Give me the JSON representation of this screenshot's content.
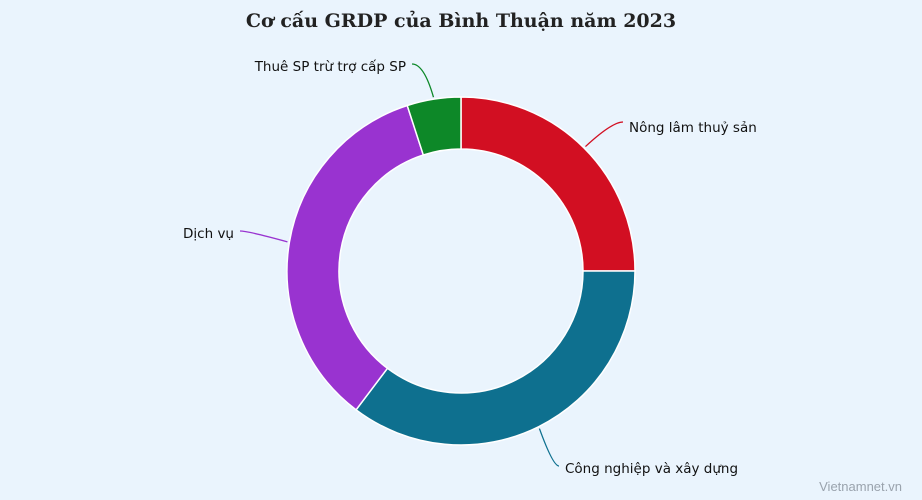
{
  "chart_data": {
    "type": "pie",
    "variant": "donut",
    "title": "Cơ cấu GRDP của Bình Thuận năm 2023",
    "unit": "%",
    "slices": [
      {
        "label": "Nông lâm thuỷ sản",
        "value": 25.0,
        "color": "#d20f22"
      },
      {
        "label": "Công nghiệp và xây dựng",
        "value": 35.3,
        "color": "#0e708f"
      },
      {
        "label": "Dịch vụ",
        "value": 34.7,
        "color": "#9933d0"
      },
      {
        "label": "Thuê SP trừ trợ cấp SP",
        "value": 5.0,
        "color": "#0d8828"
      }
    ],
    "legend": "none"
  },
  "credit": "Vietnamnet.vn"
}
